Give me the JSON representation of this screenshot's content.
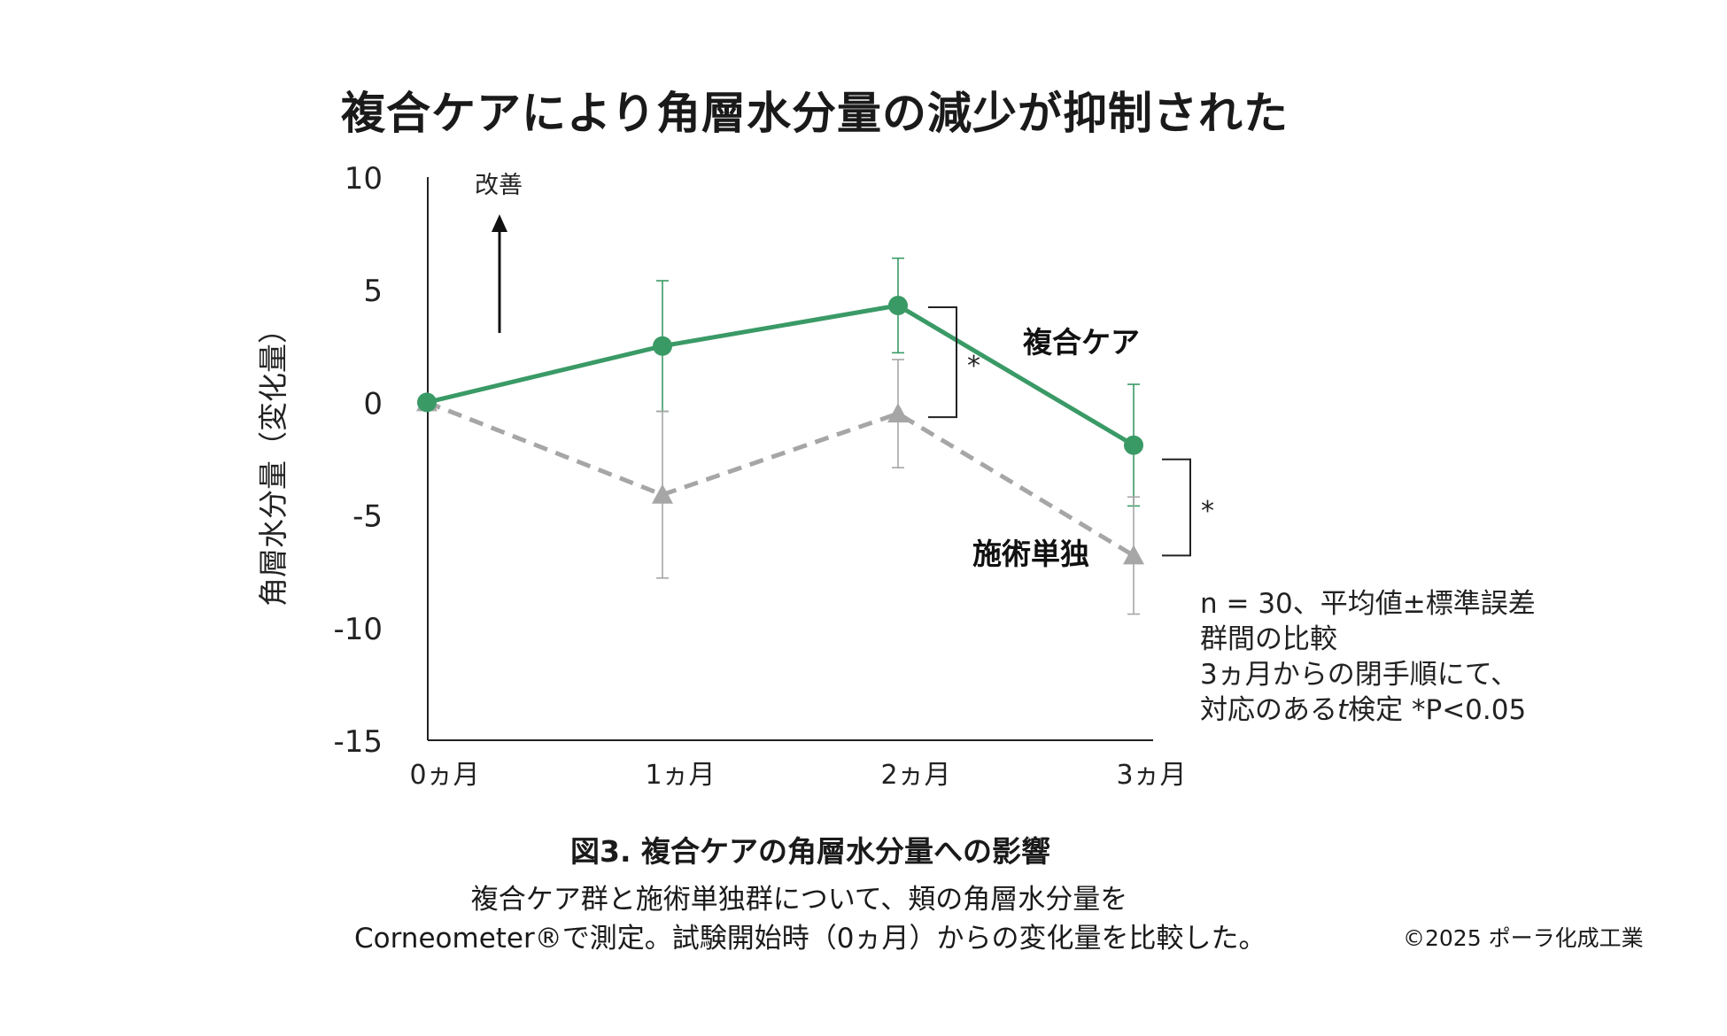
{
  "title": "複合ケアにより角層水分量の減少が抑制された",
  "chart_data": {
    "type": "line",
    "x_categories": [
      "0ヵ月",
      "1ヵ月",
      "2ヵ月",
      "3ヵ月"
    ],
    "ylabel": "角層水分量（変化量）",
    "ylim": [
      -15,
      10
    ],
    "y_ticks": [
      "10",
      "5",
      "0",
      "-5",
      "-10",
      "-15"
    ],
    "series": [
      {
        "name": "複合ケア",
        "color": "#3a9a66",
        "marker": "circle",
        "line_style": "solid",
        "values": [
          0,
          2.5,
          4.3,
          -1.9
        ],
        "error": [
          0,
          2.9,
          2.1,
          2.7
        ]
      },
      {
        "name": "施術単独",
        "color": "#a6a6a6",
        "marker": "triangle",
        "line_style": "dashed",
        "values": [
          0,
          -4.1,
          -0.5,
          -6.8
        ],
        "error": [
          0,
          3.7,
          2.4,
          2.6
        ]
      }
    ],
    "improvement_label": "改善",
    "significance": [
      {
        "category": "2ヵ月",
        "mark": "*"
      },
      {
        "category": "3ヵ月",
        "mark": "*"
      }
    ],
    "grid": false
  },
  "note": {
    "line1": "n = 30、平均値±標準誤差",
    "line2": "群間の比較",
    "line3": "3ヵ月からの閉手順にて、",
    "line4": "対応のある",
    "line4_italic": "t",
    "line4_rest": "検定 *P<0.05"
  },
  "caption": {
    "title": "図3. 複合ケアの角層水分量への影響",
    "line1": "複合ケア群と施術単独群について、頬の角層水分量を",
    "line2": "Corneometer®で測定。試験開始時（0ヵ月）からの変化量を比較した。"
  },
  "copyright": "©2025 ポーラ化成工業"
}
